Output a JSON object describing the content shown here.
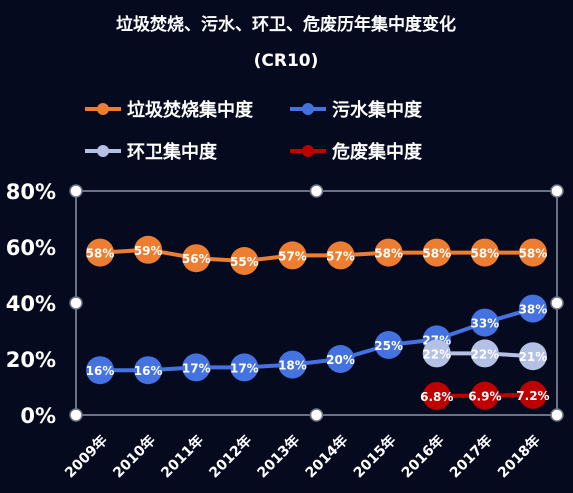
{
  "chart_data": {
    "type": "line",
    "title_line1": "垃圾焚烧、污水、环卫、危废历年集中度变化",
    "title_line2": "(CR10)",
    "categories": [
      "2009年",
      "2010年",
      "2011年",
      "2012年",
      "2013年",
      "2014年",
      "2015年",
      "2016年",
      "2017年",
      "2018年"
    ],
    "ylim": [
      0,
      80
    ],
    "yticks": [
      "0%",
      "20%",
      "40%",
      "60%",
      "80%"
    ],
    "legend_position": "top",
    "grid": false,
    "series": [
      {
        "name": "垃圾焚烧集中度",
        "color": "#ed7d31",
        "values": [
          58,
          59,
          56,
          55,
          57,
          57,
          58,
          58,
          58,
          58
        ],
        "labels": [
          "58%",
          "59%",
          "56%",
          "55%",
          "57%",
          "57%",
          "58%",
          "58%",
          "58%",
          "58%"
        ]
      },
      {
        "name": "污水集中度",
        "color": "#4472e0",
        "values": [
          16,
          16,
          17,
          17,
          18,
          20,
          25,
          27,
          33,
          38
        ],
        "labels": [
          "16%",
          "16%",
          "17%",
          "17%",
          "18%",
          "20%",
          "25%",
          "27%",
          "33%",
          "38%"
        ]
      },
      {
        "name": "环卫集中度",
        "color": "#b4c0e4",
        "values": [
          null,
          null,
          null,
          null,
          null,
          null,
          null,
          22,
          22,
          21
        ],
        "labels": [
          null,
          null,
          null,
          null,
          null,
          null,
          null,
          "22%",
          "22%",
          "21%"
        ]
      },
      {
        "name": "危废集中度",
        "color": "#c00000",
        "values": [
          null,
          null,
          null,
          null,
          null,
          null,
          null,
          6.8,
          6.9,
          7.2
        ],
        "labels": [
          null,
          null,
          null,
          null,
          null,
          null,
          null,
          "6.8%",
          "6.9%",
          "7.2%"
        ]
      }
    ]
  }
}
